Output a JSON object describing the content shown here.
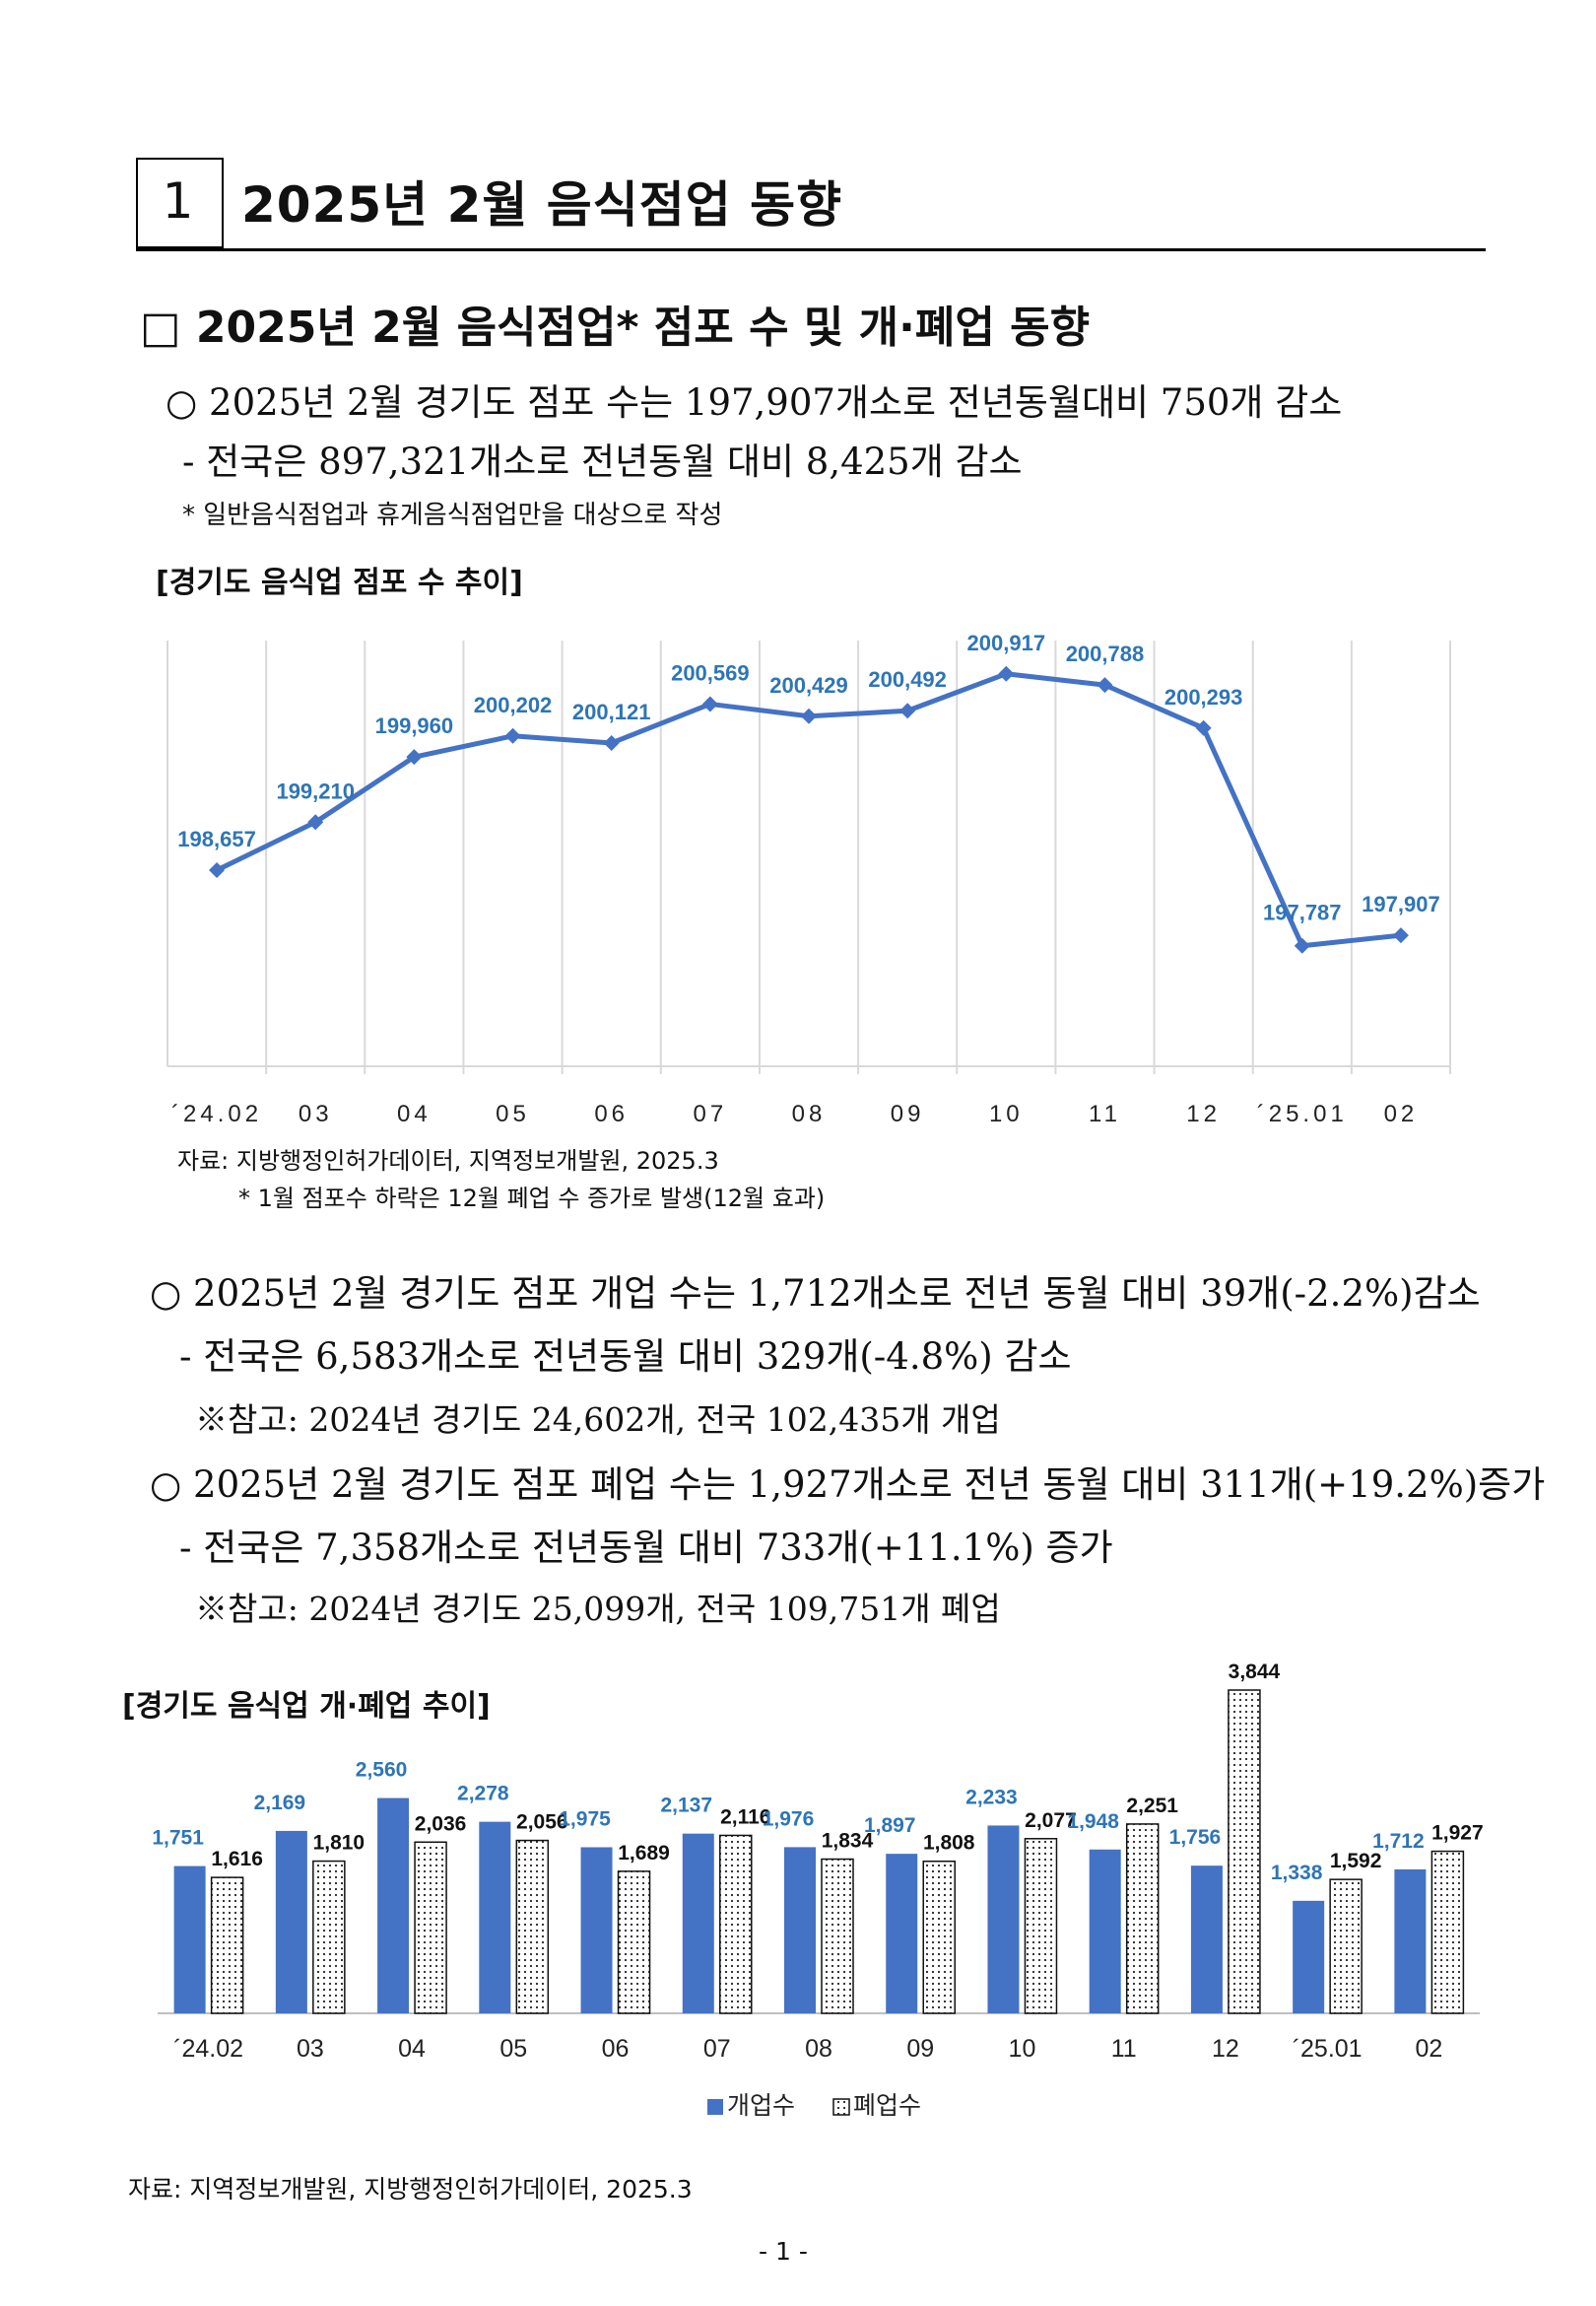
{
  "header": {
    "number": "1",
    "title": "2025년 2월 음식점업 동향"
  },
  "section": {
    "title": "□ 2025년 2월 음식점업* 점포 수 및 개·폐업 동향"
  },
  "para1": {
    "line1": "○ 2025년 2월 경기도 점포 수는 197,907개소로 전년동월대비 750개 감소",
    "line2": "- 전국은 897,321개소로 전년동월 대비 8,425개 감소",
    "note": "* 일반음식점업과 휴게음식점업만을 대상으로 작성"
  },
  "chart1": {
    "heading": "[경기도 음식업 점포 수 추이]",
    "source": "자료: 지방행정인허가데이터, 지역정보개발원, 2025.3",
    "footnote": "* 1월 점포수 하락은 12월 폐업 수 증가로 발생(12월 효과)"
  },
  "para2": {
    "line1": "○ 2025년 2월 경기도 점포 개업 수는 1,712개소로 전년 동월 대비 39개(-2.2%)감소",
    "line2": "- 전국은  6,583개소로 전년동월 대비 329개(-4.8%) 감소",
    "line3": "※참고: 2024년 경기도 24,602개, 전국 102,435개 개업",
    "line4": "○ 2025년 2월 경기도 점포 폐업 수는 1,927개소로 전년 동월 대비 311개(+19.2%)증가",
    "line5": "- 전국은  7,358개소로 전년동월 대비 733개(+11.1%) 증가",
    "line6": "※참고: 2024년 경기도 25,099개, 전국 109,751개 폐업"
  },
  "chart2": {
    "heading": "[경기도 음식업 개·폐업 추이]",
    "source": "자료: 지역정보개발원, 지방행정인허가데이터, 2025.3"
  },
  "page_number": "- 1 -",
  "colors": {
    "series_blue": "#4472C4",
    "label_blue": "#2E75B6",
    "grid": "#D9D9D9"
  },
  "chart_data": [
    {
      "type": "line",
      "title": "[경기도 음식업 점포 수 추이]",
      "categories": [
        "´24.02",
        "03",
        "04",
        "05",
        "06",
        "07",
        "08",
        "09",
        "10",
        "11",
        "12",
        "´25.01",
        "02"
      ],
      "values": [
        198657,
        199210,
        199960,
        200202,
        200121,
        200569,
        200429,
        200492,
        200917,
        200788,
        200293,
        197787,
        197907
      ],
      "value_labels": [
        "198,657",
        "199,210",
        "199,960",
        "200,202",
        "200,121",
        "200,569",
        "200,429",
        "200,492",
        "200,917",
        "200,788",
        "200,293",
        "197,787",
        "197,907"
      ],
      "ylim": [
        196400,
        201300
      ],
      "grid": "vertical"
    },
    {
      "type": "bar",
      "title": "[경기도 음식업 개·폐업 추이]",
      "categories": [
        "´24.02",
        "03",
        "04",
        "05",
        "06",
        "07",
        "08",
        "09",
        "10",
        "11",
        "12",
        "´25.01",
        "02"
      ],
      "series": [
        {
          "name": "개업수",
          "values": [
            1751,
            2169,
            2560,
            2278,
            1975,
            2137,
            1976,
            1897,
            2233,
            1948,
            1756,
            1338,
            1712
          ],
          "labels": [
            "1,751",
            "2,169",
            "2,560",
            "2,278",
            "1,975",
            "2,137",
            "1,976",
            "1,897",
            "2,233",
            "1,948",
            "1,756",
            "1,338",
            "1,712"
          ]
        },
        {
          "name": "폐업수",
          "values": [
            1616,
            1810,
            2036,
            2056,
            1689,
            2116,
            1834,
            1808,
            2077,
            2251,
            3844,
            1592,
            1927
          ],
          "labels": [
            "1,616",
            "1,810",
            "2,036",
            "2,056",
            "1,689",
            "2,116",
            "1,834",
            "1,808",
            "2,077",
            "2,251",
            "3,844",
            "1,592",
            "1,927"
          ]
        }
      ],
      "ylim": [
        0,
        3844
      ],
      "legend": "bottom"
    }
  ]
}
